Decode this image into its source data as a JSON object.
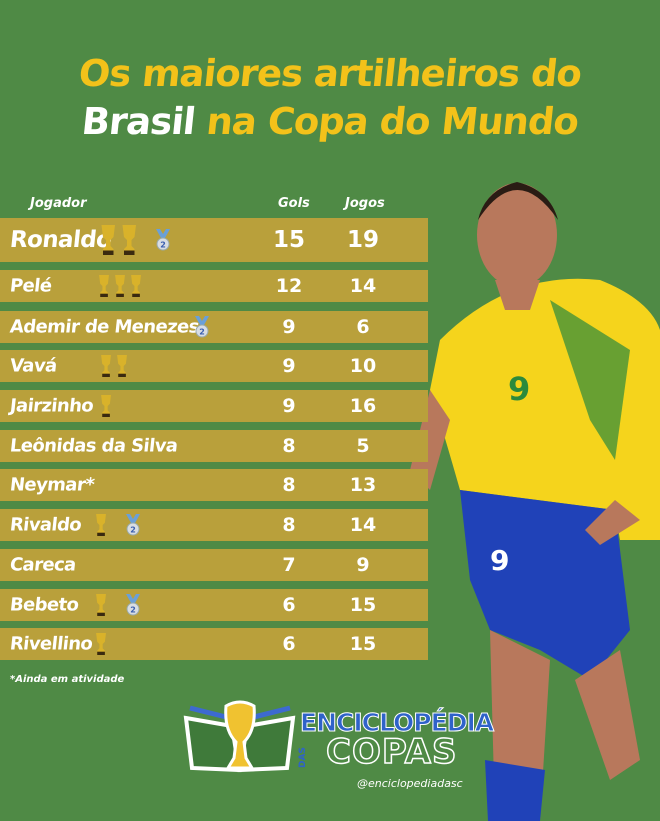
{
  "title": {
    "line1": "Os maiores artilheiros do",
    "line2_white": "Brasil",
    "line2_yellow": " na Copa do Mundo"
  },
  "columns": {
    "player": "Jogador",
    "goals": "Gols",
    "games": "Jogos"
  },
  "rows": [
    {
      "name": "Ronaldo",
      "goals": "15",
      "games": "19",
      "trophies": 2,
      "silver": 1
    },
    {
      "name": "Pelé",
      "goals": "12",
      "games": "14",
      "trophies": 3,
      "silver": 0
    },
    {
      "name": "Ademir de Menezes",
      "goals": "9",
      "games": "6",
      "trophies": 0,
      "silver": 1
    },
    {
      "name": "Vavá",
      "goals": "9",
      "games": "10",
      "trophies": 2,
      "silver": 0
    },
    {
      "name": "Jairzinho",
      "goals": "9",
      "games": "16",
      "trophies": 1,
      "silver": 0
    },
    {
      "name": "Leônidas da Silva",
      "goals": "8",
      "games": "5",
      "trophies": 0,
      "silver": 0
    },
    {
      "name": "Neymar*",
      "goals": "8",
      "games": "13",
      "trophies": 0,
      "silver": 0
    },
    {
      "name": "Rivaldo",
      "goals": "8",
      "games": "14",
      "trophies": 1,
      "silver": 1
    },
    {
      "name": "Careca",
      "goals": "7",
      "games": "9",
      "trophies": 0,
      "silver": 0
    },
    {
      "name": "Bebeto",
      "goals": "6",
      "games": "15",
      "trophies": 1,
      "silver": 1
    },
    {
      "name": "Rivellino",
      "goals": "6",
      "games": "15",
      "trophies": 1,
      "silver": 0
    }
  ],
  "medal_label": "2",
  "footnote": "*Ainda em atividade",
  "brand": {
    "line1": "ENCICLOPÉDIA",
    "das": "DAS",
    "line2": "COPAS",
    "handle": "@enciclopediadasc"
  },
  "player_photo": {
    "shirt_number": "9",
    "shorts_number": "9"
  },
  "colors": {
    "background": "#4f8a45",
    "row": "#b9a03b",
    "title_yellow": "#f3c21a",
    "trophy": "#d9b22a",
    "medal_ribbon": "#6aa0d8"
  }
}
